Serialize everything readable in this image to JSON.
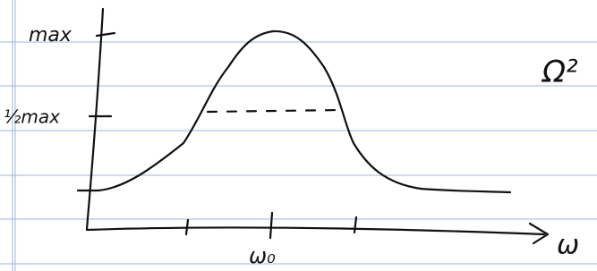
{
  "labels": {
    "max": "max",
    "half_max": "½max",
    "center": "ω₀",
    "axis": "ω",
    "side": "Ω²"
  }
}
